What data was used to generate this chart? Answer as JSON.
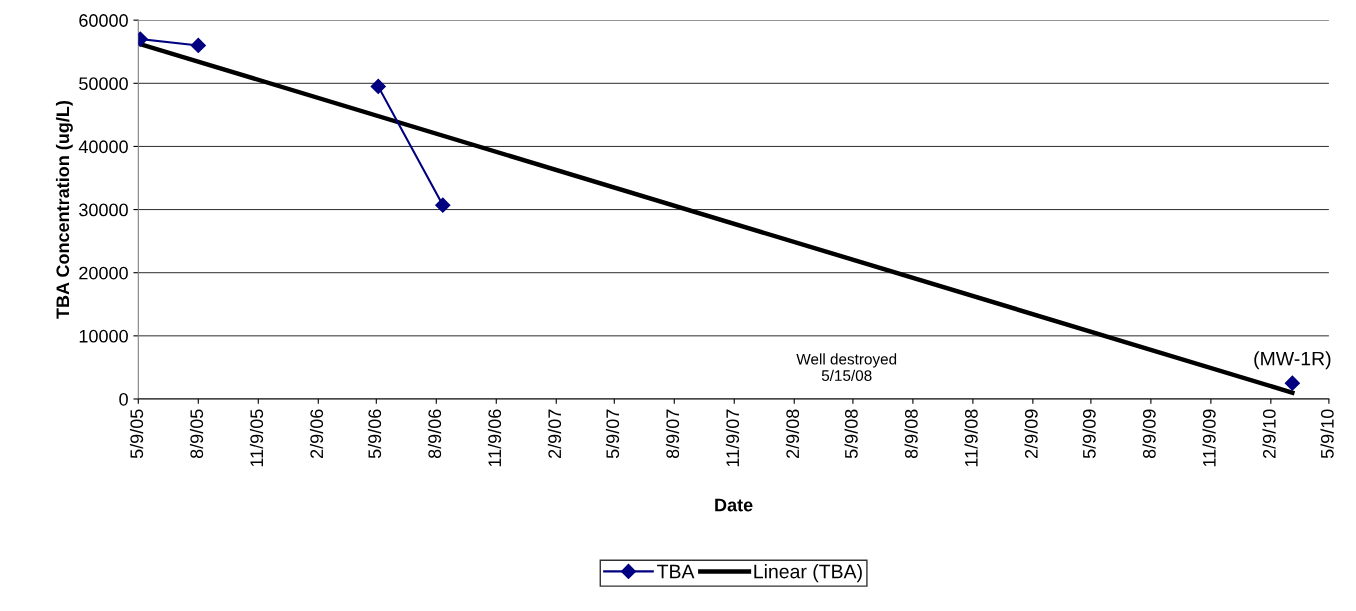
{
  "chart_data": {
    "type": "line",
    "xlabel": "Date",
    "ylabel": "TBA Concentration (ug/L)",
    "xlim": [
      "2005-05-09",
      "2010-05-09"
    ],
    "xticks": [
      {
        "value": "2005-05-09",
        "label": "5/9/05"
      },
      {
        "value": "2005-08-09",
        "label": "8/9/05"
      },
      {
        "value": "2005-11-09",
        "label": "11/9/05"
      },
      {
        "value": "2006-02-09",
        "label": "2/9/06"
      },
      {
        "value": "2006-05-09",
        "label": "5/9/06"
      },
      {
        "value": "2006-08-09",
        "label": "8/9/06"
      },
      {
        "value": "2006-11-09",
        "label": "11/9/06"
      },
      {
        "value": "2007-02-09",
        "label": "2/9/07"
      },
      {
        "value": "2007-05-09",
        "label": "5/9/07"
      },
      {
        "value": "2007-08-09",
        "label": "8/9/07"
      },
      {
        "value": "2007-11-09",
        "label": "11/9/07"
      },
      {
        "value": "2008-02-09",
        "label": "2/9/08"
      },
      {
        "value": "2008-05-09",
        "label": "5/9/08"
      },
      {
        "value": "2008-08-09",
        "label": "8/9/08"
      },
      {
        "value": "2008-11-09",
        "label": "11/9/08"
      },
      {
        "value": "2009-02-09",
        "label": "2/9/09"
      },
      {
        "value": "2009-05-09",
        "label": "5/9/09"
      },
      {
        "value": "2009-08-09",
        "label": "8/9/09"
      },
      {
        "value": "2009-11-09",
        "label": "11/9/09"
      },
      {
        "value": "2010-02-09",
        "label": "2/9/10"
      },
      {
        "value": "2010-05-09",
        "label": "5/9/10"
      }
    ],
    "ylim": [
      0,
      60000
    ],
    "yticks": [
      0,
      10000,
      20000,
      30000,
      40000,
      50000,
      60000
    ],
    "grid": "y",
    "legend": "bottom",
    "series": [
      {
        "name": "TBA",
        "color": "#000080",
        "marker": "diamond",
        "x": [
          "2005-05-12",
          "2005-08-09",
          "2006-01-01",
          "2006-05-12",
          "2006-08-19",
          "2008-05-15",
          "2010-03-14"
        ],
        "values": [
          57000,
          56000,
          null,
          49500,
          30700,
          null,
          2500
        ]
      },
      {
        "name": "Linear (TBA)",
        "color": "#000000",
        "type": "line",
        "marker": "none",
        "x": [
          "2005-05-09",
          "2010-03-14"
        ],
        "values": [
          56300,
          1000
        ]
      }
    ],
    "annotations": [
      "Well destroyed\n5/15/08",
      {
        "text": "(MW-1R)",
        "x": "2010-03-14",
        "y": 2500
      }
    ]
  }
}
